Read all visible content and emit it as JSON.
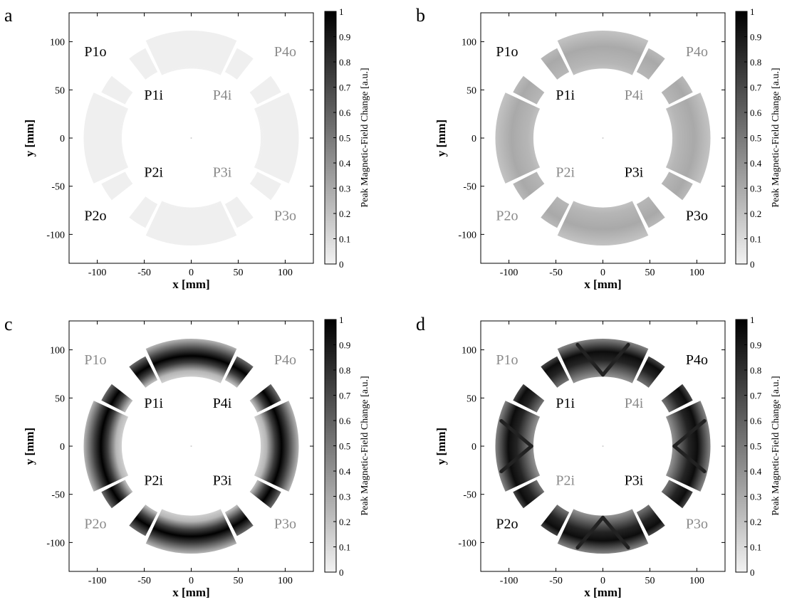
{
  "colors": {
    "dark": "#000000",
    "light": "#f2f2f2",
    "pole_active": "#000000",
    "pole_inactive": "#8a8a8a"
  },
  "chart_data": [
    {
      "type": "heatmap",
      "panel_label": "a",
      "xlabel": "x [mm]",
      "ylabel": "y [mm]",
      "xlim": [
        -130,
        130
      ],
      "ylim": [
        -130,
        130
      ],
      "xticks": [
        -100,
        -50,
        0,
        50,
        100
      ],
      "yticks": [
        -100,
        -50,
        0,
        50,
        100
      ],
      "xtick_labels": [
        "-100",
        "-50",
        "0",
        "50",
        "100"
      ],
      "ytick_labels": [
        "-100",
        "-50",
        "0",
        "50",
        "100"
      ],
      "colorbar": {
        "label": "Peak Magnetic-Field Change [a.u.]",
        "range": [
          0,
          1
        ],
        "ticks": [
          "0",
          "0.1",
          "0.2",
          "0.3",
          "0.4",
          "0.5",
          "0.6",
          "0.7",
          "0.8",
          "0.9",
          "1"
        ]
      },
      "pattern": "uniform",
      "intensity": 0.12,
      "pole_labels": [
        {
          "text": "P1o",
          "x": -102,
          "y": 90,
          "active": true
        },
        {
          "text": "P4o",
          "x": 100,
          "y": 90,
          "active": false
        },
        {
          "text": "P1i",
          "x": -40,
          "y": 45,
          "active": true
        },
        {
          "text": "P4i",
          "x": 33,
          "y": 45,
          "active": false
        },
        {
          "text": "P2i",
          "x": -40,
          "y": -35,
          "active": true
        },
        {
          "text": "P3i",
          "x": 33,
          "y": -35,
          "active": false
        },
        {
          "text": "P2o",
          "x": -102,
          "y": -80,
          "active": true
        },
        {
          "text": "P3o",
          "x": 100,
          "y": -80,
          "active": false
        }
      ]
    },
    {
      "type": "heatmap",
      "panel_label": "b",
      "xlabel": "x [mm]",
      "ylabel": "y [mm]",
      "xlim": [
        -130,
        130
      ],
      "ylim": [
        -130,
        130
      ],
      "xticks": [
        -100,
        -50,
        0,
        50,
        100
      ],
      "yticks": [
        -100,
        -50,
        0,
        50,
        100
      ],
      "xtick_labels": [
        "-100",
        "-50",
        "0",
        "50",
        "100"
      ],
      "ytick_labels": [
        "-100",
        "-50",
        "0",
        "50",
        "100"
      ],
      "colorbar": {
        "label": "Peak Magnetic-Field Change [a.u.]",
        "range": [
          0,
          1
        ],
        "ticks": [
          "0",
          "0.1",
          "0.2",
          "0.3",
          "0.4",
          "0.5",
          "0.6",
          "0.7",
          "0.8",
          "0.9",
          "1"
        ]
      },
      "pattern": "center-peak",
      "intensity": 0.55,
      "pole_labels": [
        {
          "text": "P1o",
          "x": -102,
          "y": 90,
          "active": true
        },
        {
          "text": "P4o",
          "x": 100,
          "y": 90,
          "active": false
        },
        {
          "text": "P1i",
          "x": -40,
          "y": 45,
          "active": true
        },
        {
          "text": "P4i",
          "x": 33,
          "y": 45,
          "active": false
        },
        {
          "text": "P2i",
          "x": -40,
          "y": -35,
          "active": false
        },
        {
          "text": "P3i",
          "x": 33,
          "y": -35,
          "active": true
        },
        {
          "text": "P2o",
          "x": -102,
          "y": -80,
          "active": false
        },
        {
          "text": "P3o",
          "x": 100,
          "y": -80,
          "active": true
        }
      ]
    },
    {
      "type": "heatmap",
      "panel_label": "c",
      "xlabel": "x [mm]",
      "ylabel": "y [mm]",
      "xlim": [
        -130,
        130
      ],
      "ylim": [
        -130,
        130
      ],
      "xticks": [
        -100,
        -50,
        0,
        50,
        100
      ],
      "yticks": [
        -100,
        -50,
        0,
        50,
        100
      ],
      "xtick_labels": [
        "-100",
        "-50",
        "0",
        "50",
        "100"
      ],
      "ytick_labels": [
        "-100",
        "-50",
        "0",
        "50",
        "100"
      ],
      "colorbar": {
        "label": "Peak Magnetic-Field Change [a.u.]",
        "range": [
          0,
          1
        ],
        "ticks": [
          "0",
          "0.1",
          "0.2",
          "0.3",
          "0.4",
          "0.5",
          "0.6",
          "0.7",
          "0.8",
          "0.9",
          "1"
        ]
      },
      "pattern": "ring",
      "intensity": 1.0,
      "pole_labels": [
        {
          "text": "P1o",
          "x": -102,
          "y": 90,
          "active": false
        },
        {
          "text": "P4o",
          "x": 100,
          "y": 90,
          "active": false
        },
        {
          "text": "P1i",
          "x": -40,
          "y": 45,
          "active": true
        },
        {
          "text": "P4i",
          "x": 33,
          "y": 45,
          "active": true
        },
        {
          "text": "P2i",
          "x": -40,
          "y": -35,
          "active": true
        },
        {
          "text": "P3i",
          "x": 33,
          "y": -35,
          "active": true
        },
        {
          "text": "P2o",
          "x": -102,
          "y": -80,
          "active": false
        },
        {
          "text": "P3o",
          "x": 100,
          "y": -80,
          "active": false
        }
      ]
    },
    {
      "type": "heatmap",
      "panel_label": "d",
      "xlabel": "x [mm]",
      "ylabel": "y [mm]",
      "xlim": [
        -130,
        130
      ],
      "ylim": [
        -130,
        130
      ],
      "xticks": [
        -100,
        -50,
        0,
        50,
        100
      ],
      "yticks": [
        -100,
        -50,
        0,
        50,
        100
      ],
      "xtick_labels": [
        "-100",
        "-50",
        "0",
        "50",
        "100"
      ],
      "ytick_labels": [
        "-100",
        "-50",
        "0",
        "50",
        "100"
      ],
      "colorbar": {
        "label": "Peak Magnetic-Field Change [a.u.]",
        "range": [
          0,
          1
        ],
        "ticks": [
          "0",
          "0.1",
          "0.2",
          "0.3",
          "0.4",
          "0.5",
          "0.6",
          "0.7",
          "0.8",
          "0.9",
          "1"
        ]
      },
      "pattern": "cross",
      "intensity": 1.0,
      "pole_labels": [
        {
          "text": "P1o",
          "x": -102,
          "y": 90,
          "active": false
        },
        {
          "text": "P4o",
          "x": 100,
          "y": 90,
          "active": true
        },
        {
          "text": "P1i",
          "x": -40,
          "y": 45,
          "active": true
        },
        {
          "text": "P4i",
          "x": 33,
          "y": 45,
          "active": false
        },
        {
          "text": "P2i",
          "x": -40,
          "y": -35,
          "active": false
        },
        {
          "text": "P3i",
          "x": 33,
          "y": -35,
          "active": true
        },
        {
          "text": "P2o",
          "x": -102,
          "y": -80,
          "active": true
        },
        {
          "text": "P3o",
          "x": 100,
          "y": -80,
          "active": false
        }
      ]
    }
  ]
}
